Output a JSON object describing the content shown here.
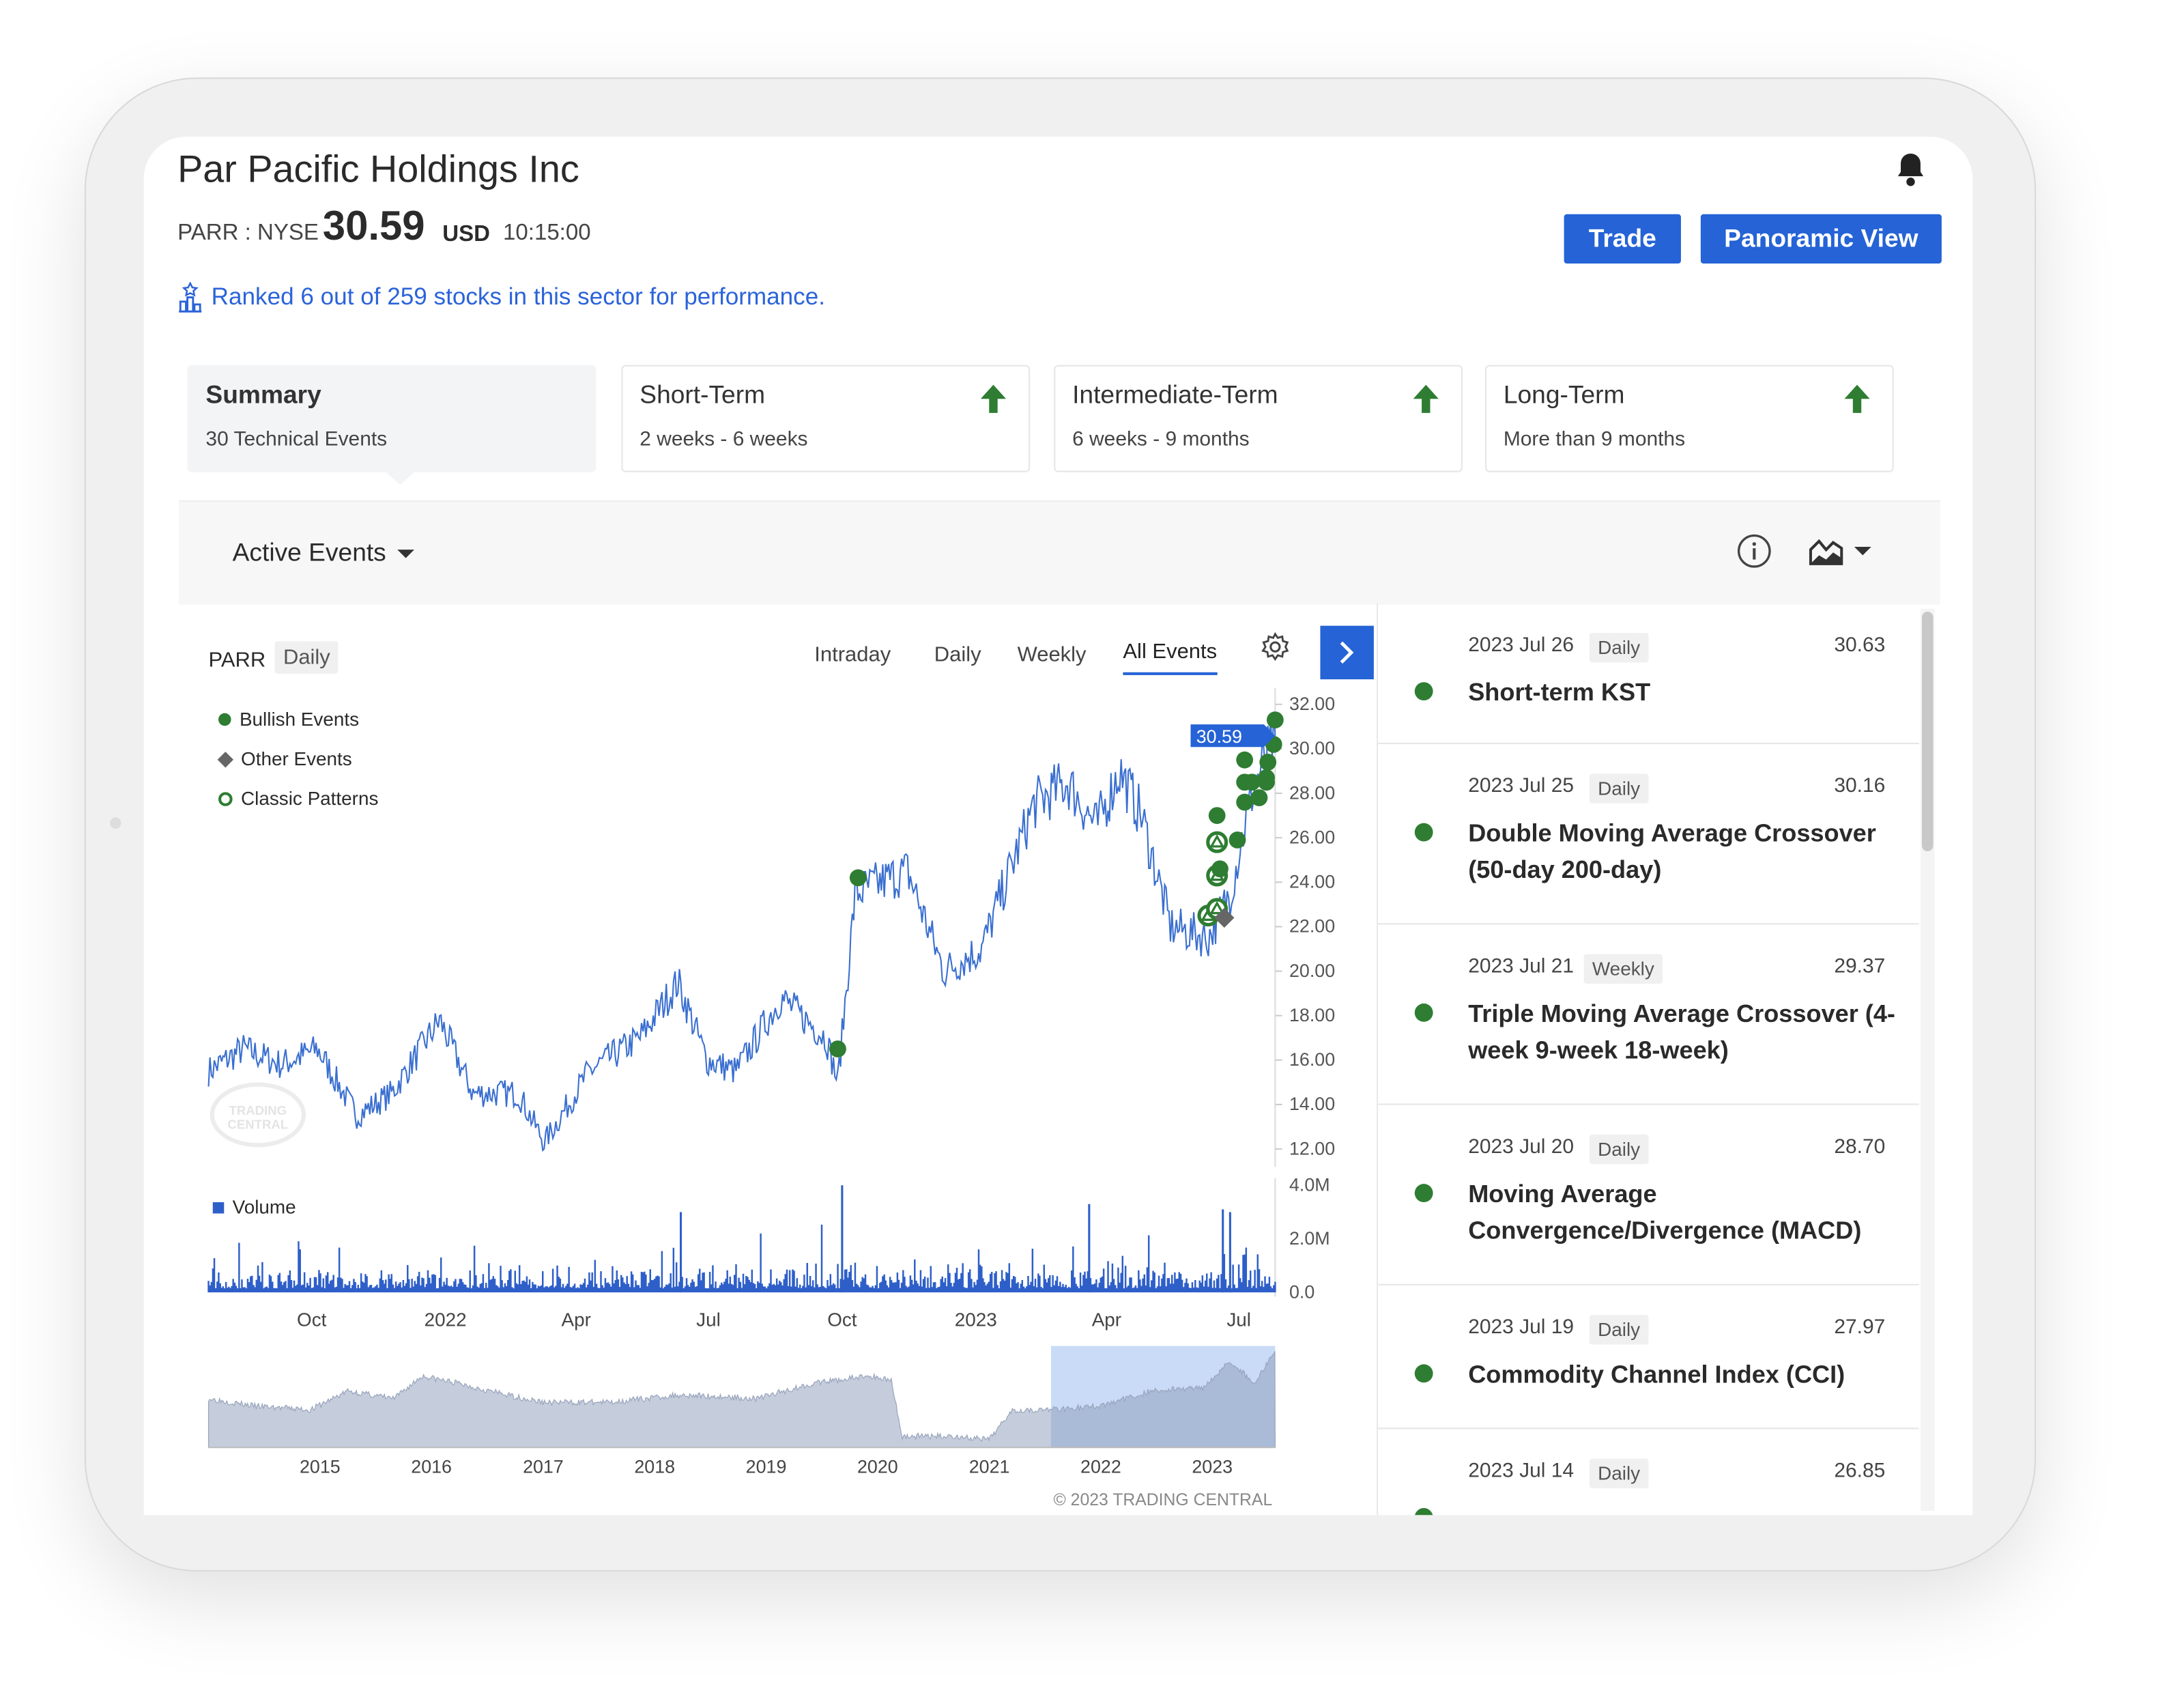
{
  "header": {
    "title": "Par Pacific Holdings Inc",
    "ticker": "PARR : NYSE",
    "price": "30.59",
    "currency": "USD",
    "time": "10:15:00",
    "trade_label": "Trade",
    "panoramic_label": "Panoramic View",
    "rank_text": "Ranked 6 out of 259 stocks in this sector for performance.",
    "icons": {
      "bell": "bell-icon",
      "rank": "podium-icon"
    }
  },
  "cards": [
    {
      "title": "Summary",
      "subtitle": "30 Technical Events",
      "selected": true
    },
    {
      "title": "Short-Term",
      "subtitle": "2 weeks - 6 weeks",
      "trend": "up"
    },
    {
      "title": "Intermediate-Term",
      "subtitle": "6 weeks - 9 months",
      "trend": "up"
    },
    {
      "title": "Long-Term",
      "subtitle": "More than 9 months",
      "trend": "up"
    }
  ],
  "events_bar": {
    "dropdown_label": "Active Events"
  },
  "chart": {
    "symbol": "PARR",
    "period_badge": "Daily",
    "tabs": [
      "Intraday",
      "Daily",
      "Weekly",
      "All Events"
    ],
    "active_tab": "All Events",
    "legend": [
      "Bullish Events",
      "Other Events",
      "Classic Patterns"
    ],
    "volume_label": "Volume",
    "copyright": "© 2023 TRADING CENTRAL",
    "last_price_label": "30.59"
  },
  "colors": {
    "accent": "#2563d6",
    "bullish": "#2e7d32",
    "price_line": "#3a6fd0",
    "other": "#666666"
  },
  "chart_data": {
    "type": "line",
    "price": {
      "ylim": [
        11,
        33
      ],
      "yticks": [
        "32.00",
        "30.00",
        "28.00",
        "26.00",
        "24.00",
        "22.00",
        "20.00",
        "18.00",
        "16.00",
        "14.00",
        "12.00"
      ],
      "x": [
        "2021-07-22",
        "2021-08-15",
        "2021-09-10",
        "2021-10-05",
        "2021-11-01",
        "2021-11-25",
        "2021-12-28",
        "2022-01-20",
        "2022-02-20",
        "2022-03-10",
        "2022-04-10",
        "2022-05-15",
        "2022-06-10",
        "2022-06-30",
        "2022-07-20",
        "2022-08-20",
        "2022-09-20",
        "2022-09-28",
        "2022-10-10",
        "2022-11-15",
        "2022-12-10",
        "2023-01-05",
        "2023-02-10",
        "2023-03-05",
        "2023-03-25",
        "2023-04-10",
        "2023-04-25",
        "2023-05-15",
        "2023-06-10",
        "2023-06-25",
        "2023-07-10",
        "2023-07-26"
      ],
      "y": [
        15.5,
        16.5,
        15.8,
        16.5,
        13.5,
        14.5,
        17.8,
        14.5,
        14.5,
        12.3,
        15.5,
        17,
        19.5,
        16,
        15.5,
        18.8,
        17,
        15,
        23.5,
        24.5,
        20,
        21,
        27.5,
        28.5,
        26.5,
        29,
        27,
        22,
        21.5,
        23.5,
        28,
        30.59
      ]
    },
    "events": [
      {
        "date": "2022-09-28",
        "price": 16.5,
        "type": "bullish"
      },
      {
        "date": "2022-10-12",
        "price": 24.2,
        "type": "bullish"
      },
      {
        "date": "2023-06-10",
        "price": 22.5,
        "type": "pattern"
      },
      {
        "date": "2023-06-16",
        "price": 22.8,
        "type": "pattern"
      },
      {
        "date": "2023-06-16",
        "price": 24.3,
        "type": "pattern"
      },
      {
        "date": "2023-06-16",
        "price": 25.8,
        "type": "pattern"
      },
      {
        "date": "2023-06-18",
        "price": 24.6,
        "type": "bullish"
      },
      {
        "date": "2023-06-16",
        "price": 27,
        "type": "bullish"
      },
      {
        "date": "2023-06-21",
        "price": 22.4,
        "type": "other"
      },
      {
        "date": "2023-06-30",
        "price": 25.9,
        "type": "bullish"
      },
      {
        "date": "2023-07-05",
        "price": 27.6,
        "type": "bullish"
      },
      {
        "date": "2023-07-05",
        "price": 28.5,
        "type": "bullish"
      },
      {
        "date": "2023-07-05",
        "price": 29.5,
        "type": "bullish"
      },
      {
        "date": "2023-07-10",
        "price": 28.5,
        "type": "bullish"
      },
      {
        "date": "2023-07-15",
        "price": 27.8,
        "type": "bullish"
      },
      {
        "date": "2023-07-20",
        "price": 28.5,
        "type": "bullish"
      },
      {
        "date": "2023-07-20",
        "price": 28.7,
        "type": "bullish"
      },
      {
        "date": "2023-07-21",
        "price": 29.4,
        "type": "bullish"
      },
      {
        "date": "2023-07-25",
        "price": 30.2,
        "type": "bullish"
      },
      {
        "date": "2023-07-26",
        "price": 31.3,
        "type": "bullish"
      }
    ],
    "volume": {
      "ylim": [
        0,
        4000000
      ],
      "yticks": [
        "4.0M",
        "2.0M",
        "0.0"
      ],
      "peaks": [
        {
          "date": "2022-06-12",
          "value": 3000000
        },
        {
          "date": "2022-10-01",
          "value": 4000000
        },
        {
          "date": "2023-03-20",
          "value": 3300000
        },
        {
          "date": "2023-06-20",
          "value": 3100000
        },
        {
          "date": "2023-06-25",
          "value": 3000000
        }
      ]
    },
    "xticks": [
      "Oct",
      "2022",
      "Apr",
      "Jul",
      "Oct",
      "2023",
      "Apr",
      "Jul"
    ],
    "navigator": {
      "xticks": [
        "2015",
        "2016",
        "2017",
        "2018",
        "2019",
        "2020",
        "2021",
        "2022",
        "2023"
      ],
      "x": [
        "2014-01-01",
        "2014-06-01",
        "2014-12-01",
        "2015-04-01",
        "2015-09-01",
        "2015-12-01",
        "2016-04-01",
        "2016-09-01",
        "2017-01-01",
        "2017-08-01",
        "2018-04-01",
        "2018-12-01",
        "2019-06-01",
        "2019-12-01",
        "2020-02-15",
        "2020-03-20",
        "2020-09-01",
        "2021-01-01",
        "2021-03-15",
        "2021-07-01",
        "2022-01-01",
        "2022-06-15",
        "2022-12-01",
        "2023-03-01",
        "2023-05-20",
        "2023-07-26"
      ],
      "y": [
        18,
        16,
        15,
        20,
        18,
        24,
        22,
        19,
        17,
        17,
        19,
        18,
        22,
        24,
        23,
        8,
        8,
        7,
        15,
        15,
        16,
        20,
        21,
        28,
        22,
        30.6
      ],
      "selection": [
        "2021-07-22",
        "2023-07-26"
      ]
    }
  },
  "event_list": [
    {
      "date": "2023 Jul 26",
      "period": "Daily",
      "value": "30.63",
      "title": "Short-term KST"
    },
    {
      "date": "2023 Jul 25",
      "period": "Daily",
      "value": "30.16",
      "title": "Double Moving Average Crossover (50-day 200-day)"
    },
    {
      "date": "2023 Jul 21",
      "period": "Weekly",
      "value": "29.37",
      "title": "Triple Moving Average Crossover (4-week 9-week 18-week)"
    },
    {
      "date": "2023 Jul 20",
      "period": "Daily",
      "value": "28.70",
      "title": "Moving Average Convergence/Divergence (MACD)"
    },
    {
      "date": "2023 Jul 19",
      "period": "Daily",
      "value": "27.97",
      "title": "Commodity Channel Index (CCI)"
    },
    {
      "date": "2023 Jul 14",
      "period": "Daily",
      "value": "26.85",
      "title": ""
    }
  ]
}
